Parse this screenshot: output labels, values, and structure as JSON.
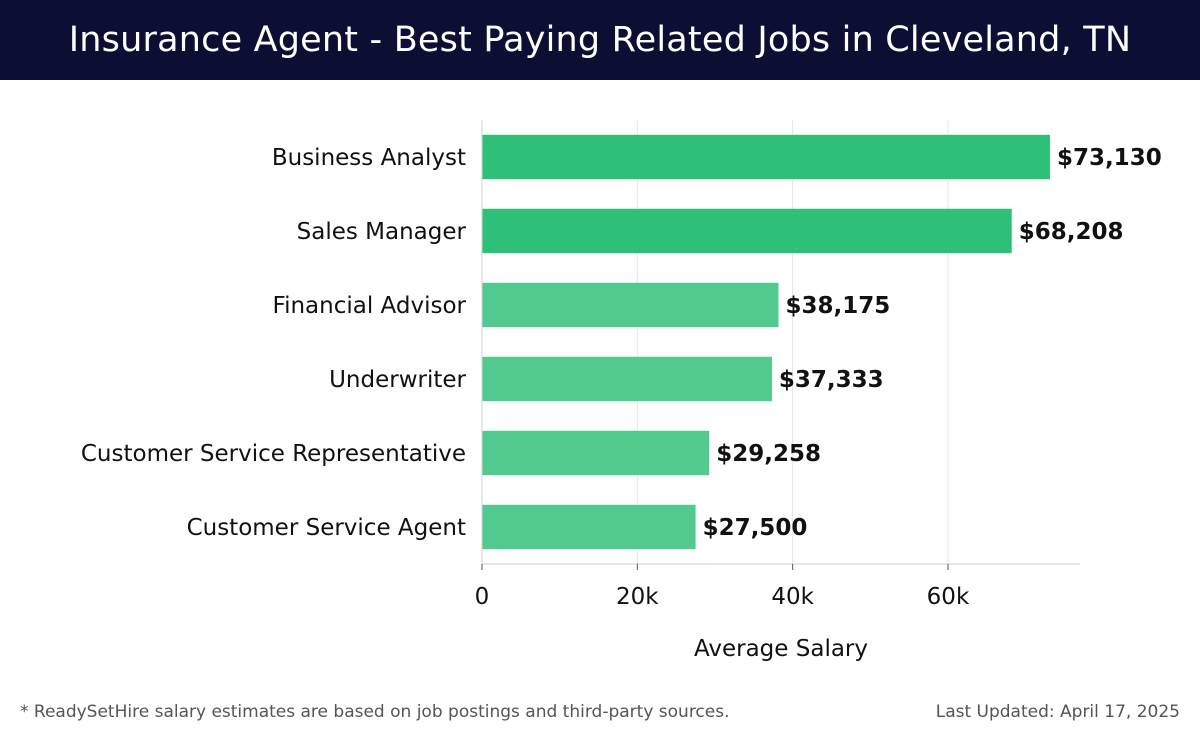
{
  "header": {
    "title": "Insurance Agent - Best Paying Related Jobs in Cleveland, TN"
  },
  "chart_data": {
    "type": "bar",
    "orientation": "horizontal",
    "title": "Insurance Agent - Best Paying Related Jobs in Cleveland, TN",
    "xlabel": "Average Salary",
    "ylabel": "",
    "categories": [
      "Business Analyst",
      "Sales Manager",
      "Financial Advisor",
      "Underwriter",
      "Customer Service Representative",
      "Customer Service Agent"
    ],
    "values": [
      73130,
      68208,
      38175,
      37333,
      29258,
      27500
    ],
    "value_labels": [
      "$73,130",
      "$68,208",
      "$38,175",
      "$37,333",
      "$29,258",
      "$27,500"
    ],
    "xlim": [
      0,
      77000
    ],
    "xticks": [
      0,
      20000,
      40000,
      60000
    ],
    "xtick_labels": [
      "0",
      "20k",
      "40k",
      "60k"
    ],
    "grid": true,
    "legend": "none",
    "colors": {
      "top_bars": "#2ebf78",
      "other_bars": "#52c98f",
      "grid": "#e3e3e3",
      "text": "#111111"
    }
  },
  "footer": {
    "note": "* ReadySetHire salary estimates are based on job postings and third-party sources.",
    "updated": "Last Updated: April 17, 2025"
  }
}
